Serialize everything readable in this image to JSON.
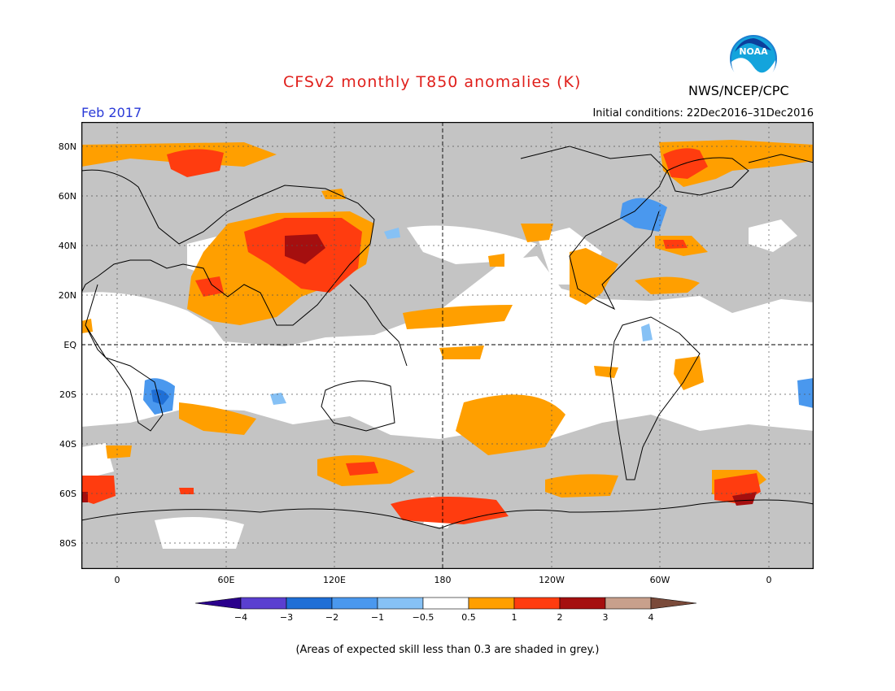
{
  "header": {
    "title": "CFSv2 monthly T850 anomalies (K)",
    "agency": "NWS/NCEP/CPC",
    "logo_text": "NOAA",
    "month": "Feb 2017",
    "initial_conditions": "Initial conditions: 22Dec2016–31Dec2016"
  },
  "axes": {
    "lat_labels": [
      "80N",
      "60N",
      "40N",
      "20N",
      "EQ",
      "20S",
      "40S",
      "60S",
      "80S"
    ],
    "lon_labels": [
      "0",
      "60E",
      "120E",
      "180",
      "120W",
      "60W",
      "0"
    ]
  },
  "legend": {
    "tick_labels": [
      "−4",
      "−3",
      "−2",
      "−1",
      "−0.5",
      "0.5",
      "1",
      "2",
      "3",
      "4"
    ],
    "colors": [
      "#2a008c",
      "#5a3fd0",
      "#1f6fd6",
      "#4a98ee",
      "#86c1f5",
      "#ffffff",
      "#ff9f00",
      "#ff3c0f",
      "#a50f0f",
      "#c8a08c",
      "#7a4a3a"
    ],
    "no_skill_color": "#c4c4c4"
  },
  "footnote": "(Areas of expected skill less than 0.3 are shaded in grey.)"
}
